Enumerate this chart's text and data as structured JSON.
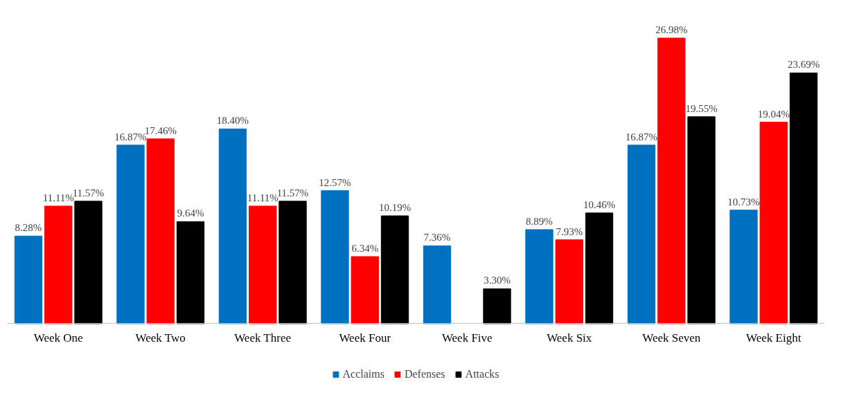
{
  "chart_data": {
    "type": "bar",
    "categories": [
      "Week One",
      "Week Two",
      "Week Three",
      "Week Four",
      "Week Five",
      "Week Six",
      "Week Seven",
      "Week Eight"
    ],
    "series": [
      {
        "name": "Acclaims",
        "color": "#0070c0",
        "values": [
          8.28,
          16.87,
          18.4,
          12.57,
          7.36,
          8.89,
          16.87,
          10.73
        ],
        "value_labels": [
          "8.28%",
          "16.87%",
          "18.40%",
          "12.57%",
          "7.36%",
          "8.89%",
          "16.87%",
          "10.73%"
        ]
      },
      {
        "name": "Defenses",
        "color": "#ff0000",
        "values": [
          11.11,
          17.46,
          11.11,
          6.34,
          null,
          7.93,
          26.98,
          19.04
        ],
        "value_labels": [
          "11.11%",
          "17.46%",
          "11.11%",
          "6.34%",
          null,
          "7.93%",
          "26.98%",
          "19.04%"
        ]
      },
      {
        "name": "Attacks",
        "color": "#000000",
        "values": [
          11.57,
          9.64,
          11.57,
          10.19,
          3.3,
          10.46,
          19.55,
          23.69
        ],
        "value_labels": [
          "11.57%",
          "9.64%",
          "11.57%",
          "10.19%",
          "3.30%",
          "10.46%",
          "19.55%",
          "23.69%"
        ]
      }
    ],
    "legend": "bottom",
    "grid": false
  }
}
